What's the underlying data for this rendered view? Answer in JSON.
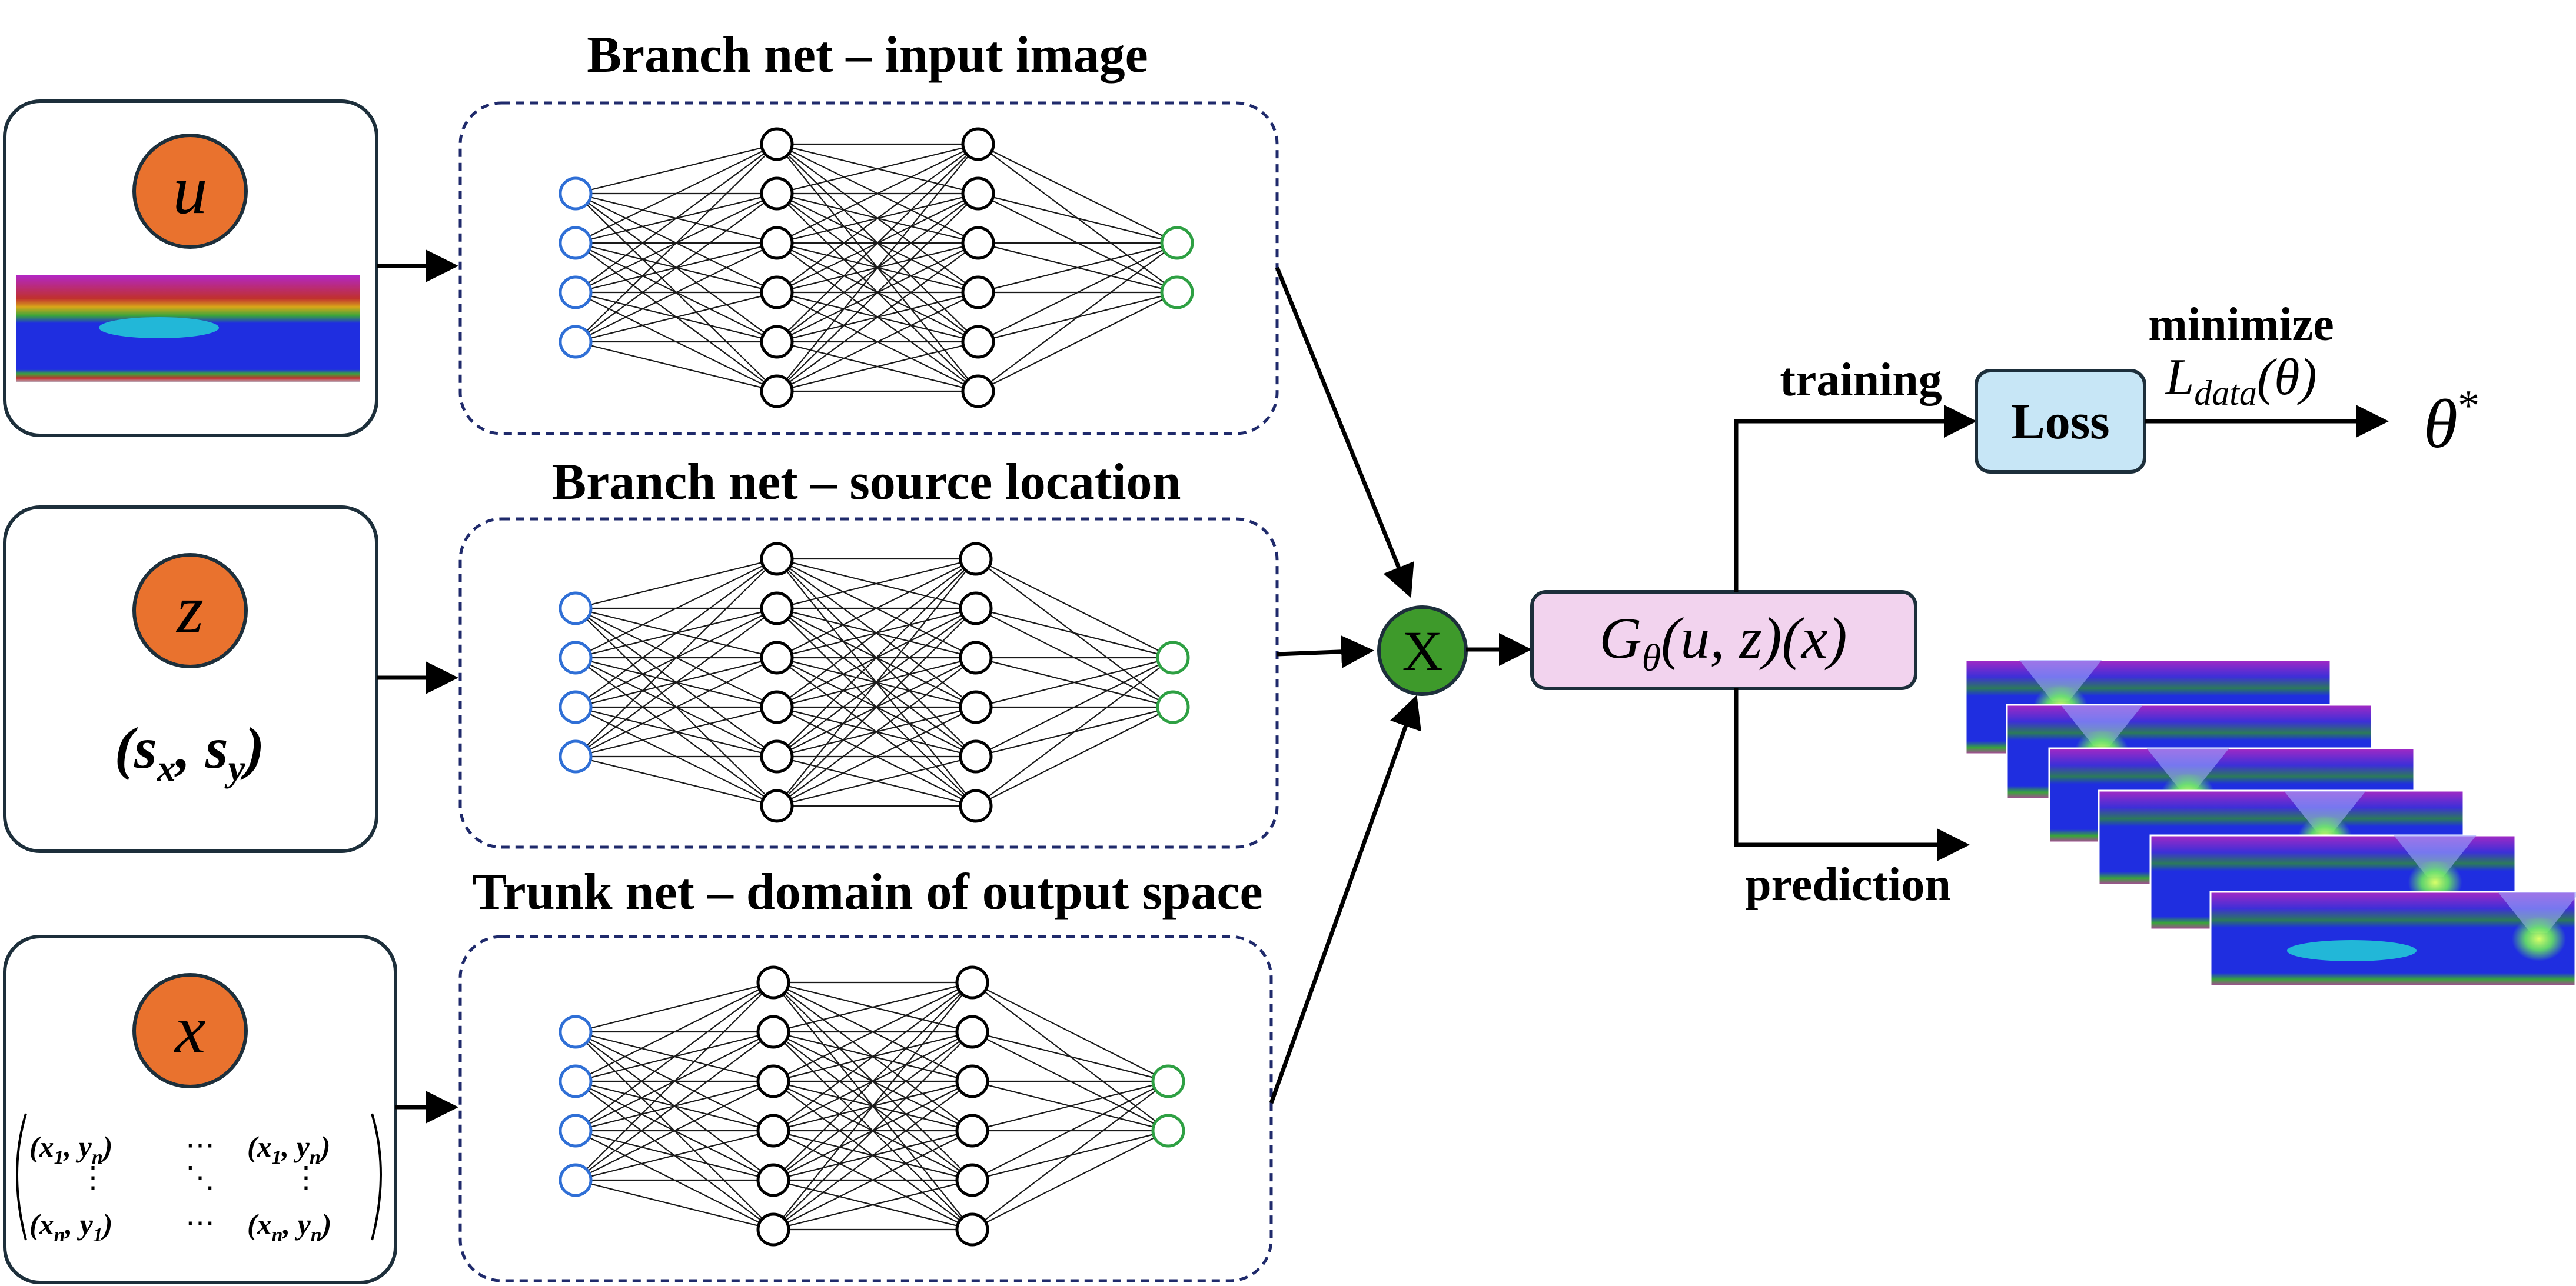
{
  "inputs": {
    "image": {
      "symbol": "u"
    },
    "source": {
      "symbol": "z",
      "coords": "(s",
      "coords_sub1": "x",
      "coords_mid": ", s",
      "coords_sub2": "y",
      "coords_end": ")"
    },
    "domain": {
      "symbol": "x",
      "matrix": {
        "top_left": "(x",
        "top_left_sub": "1",
        "top_left_mid": ", y",
        "top_left_sub2": "n",
        "top_left_end": ")",
        "top_dots": "⋯",
        "top_right": "(x",
        "top_right_sub": "1",
        "top_right_mid": ", y",
        "top_right_sub2": "n",
        "top_right_end": ")",
        "vdots": "⋮",
        "ddots": "⋱",
        "bottom_left": "(x",
        "bottom_left_sub": "n",
        "bottom_left_mid": ", y",
        "bottom_left_sub2": "1",
        "bottom_left_end": ")",
        "bottom_dots": "⋯",
        "bottom_right": "(x",
        "bottom_right_sub": "n",
        "bottom_right_mid": ", y",
        "bottom_right_sub2": "n",
        "bottom_right_end": ")"
      }
    }
  },
  "networks": [
    {
      "title": "Branch net – input image",
      "layers": [
        4,
        6,
        6,
        2
      ]
    },
    {
      "title": "Branch net – source location",
      "layers": [
        4,
        6,
        6,
        2
      ]
    },
    {
      "title": "Trunk net – domain of output space",
      "layers": [
        4,
        6,
        6,
        2
      ]
    }
  ],
  "combine": {
    "symbol": "X"
  },
  "operator": {
    "G": "G",
    "sub": "θ",
    "args": "(u, z)(x)"
  },
  "training": {
    "label": "training",
    "loss_label": "Loss",
    "minimize": "minimize",
    "objective": "L",
    "objective_sub": "data",
    "objective_arg": "(θ)",
    "result": "θ",
    "result_sup": "*"
  },
  "prediction": {
    "label": "prediction"
  },
  "colors": {
    "input_circle": "#e9722e",
    "combine_fill": "#3e9a2b",
    "operator_fill": "#f2d3ee",
    "loss_fill": "#c7e6f6",
    "node_input": "#2f6fd6",
    "node_output": "#2ea043",
    "field_background": "#1f2ee0",
    "field_top": "#b226c8",
    "field_inclusion": "#22b7d8",
    "field_source": "#6cf05a"
  }
}
